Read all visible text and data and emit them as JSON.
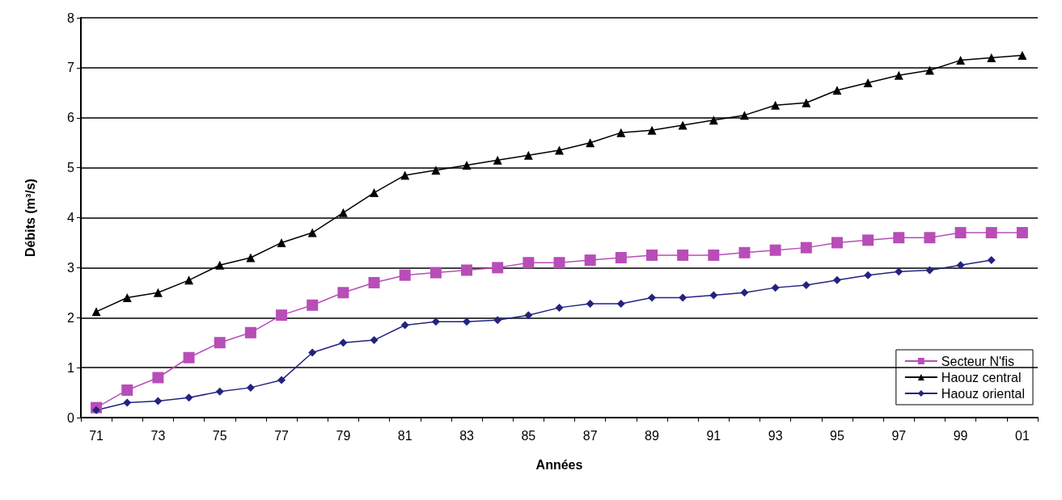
{
  "chart_data": {
    "type": "line",
    "xlabel": "Années",
    "ylabel": "Débits (m³/s)",
    "categories": [
      "71",
      null,
      "73",
      null,
      "75",
      null,
      "77",
      null,
      "79",
      null,
      "81",
      null,
      "83",
      null,
      "85",
      null,
      "87",
      null,
      "89",
      null,
      "91",
      null,
      "93",
      null,
      "95",
      null,
      "97",
      null,
      "99",
      null,
      "01"
    ],
    "series": [
      {
        "name": "Secteur N'fis",
        "color": "#b84db8",
        "marker": "square",
        "values": [
          0.2,
          0.55,
          0.8,
          1.2,
          1.5,
          1.7,
          2.05,
          2.25,
          2.5,
          2.7,
          2.85,
          2.9,
          2.95,
          3.0,
          3.1,
          3.1,
          3.15,
          3.2,
          3.25,
          3.25,
          3.25,
          3.3,
          3.35,
          3.4,
          3.5,
          3.55,
          3.6,
          3.6,
          3.7,
          3.7,
          3.7
        ]
      },
      {
        "name": "Haouz central",
        "color": "#000000",
        "marker": "triangle",
        "values": [
          2.12,
          2.4,
          2.5,
          2.75,
          3.05,
          3.2,
          3.5,
          3.7,
          4.1,
          4.5,
          4.85,
          4.95,
          5.05,
          5.15,
          5.25,
          5.35,
          5.5,
          5.7,
          5.75,
          5.85,
          5.95,
          6.05,
          6.25,
          6.3,
          6.55,
          6.7,
          6.85,
          6.95,
          7.15,
          7.2,
          7.25
        ]
      },
      {
        "name": "Haouz oriental",
        "color": "#232380",
        "marker": "diamond",
        "values": [
          0.15,
          0.3,
          0.33,
          0.4,
          0.52,
          0.6,
          0.75,
          1.3,
          1.5,
          1.55,
          1.85,
          1.92,
          1.92,
          1.95,
          2.05,
          2.2,
          2.28,
          2.28,
          2.4,
          2.4,
          2.45,
          2.5,
          2.6,
          2.65,
          2.75,
          2.85,
          2.92,
          2.95,
          3.05,
          3.15,
          null
        ]
      }
    ],
    "ylim": [
      0,
      8
    ],
    "yticks": [
      0,
      1,
      2,
      3,
      4,
      5,
      6,
      7,
      8
    ],
    "grid": "y",
    "legend": "bottom right"
  }
}
